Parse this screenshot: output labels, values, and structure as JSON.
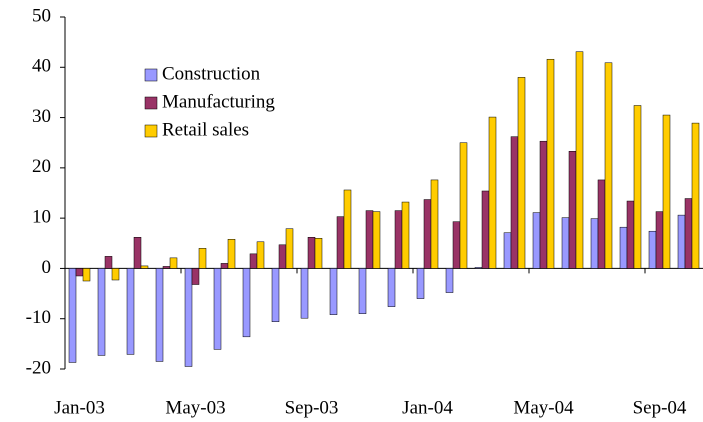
{
  "chart_data": {
    "type": "bar",
    "categories": [
      "Jan-03",
      null,
      null,
      null,
      "May-03",
      null,
      null,
      null,
      "Sep-03",
      null,
      null,
      null,
      "Jan-04",
      null,
      null,
      null,
      "May-04",
      null,
      null,
      null,
      "Sep-04",
      null
    ],
    "series": [
      {
        "name": "Construction",
        "color": "#9999ff",
        "values": [
          -18.7,
          -17.3,
          -17.1,
          -18.5,
          -19.5,
          -16.1,
          -13.6,
          -10.6,
          -9.9,
          -9.2,
          -9.0,
          -7.6,
          -6.0,
          -4.8,
          0.2,
          7.1,
          11.1,
          10.1,
          9.9,
          8.2,
          7.4,
          10.6
        ]
      },
      {
        "name": "Manufacturing",
        "color": "#993366",
        "values": [
          -1.5,
          2.4,
          6.2,
          0.4,
          -3.2,
          1.0,
          2.9,
          4.7,
          6.2,
          10.3,
          11.5,
          11.5,
          13.7,
          9.3,
          15.4,
          26.2,
          25.3,
          23.3,
          17.6,
          13.4,
          11.3,
          13.9
        ]
      },
      {
        "name": "Retail sales",
        "color": "#ffcc00",
        "values": [
          -2.5,
          -2.3,
          0.5,
          2.1,
          4.0,
          5.8,
          5.3,
          7.9,
          6.0,
          15.6,
          11.3,
          13.2,
          17.6,
          25.0,
          30.1,
          38.0,
          41.6,
          43.1,
          40.9,
          32.4,
          30.5,
          28.9
        ]
      }
    ],
    "ylim": [
      -20,
      50
    ],
    "yticks": [
      -20,
      -10,
      0,
      10,
      20,
      30,
      40,
      50
    ],
    "legend": "upper-left"
  }
}
